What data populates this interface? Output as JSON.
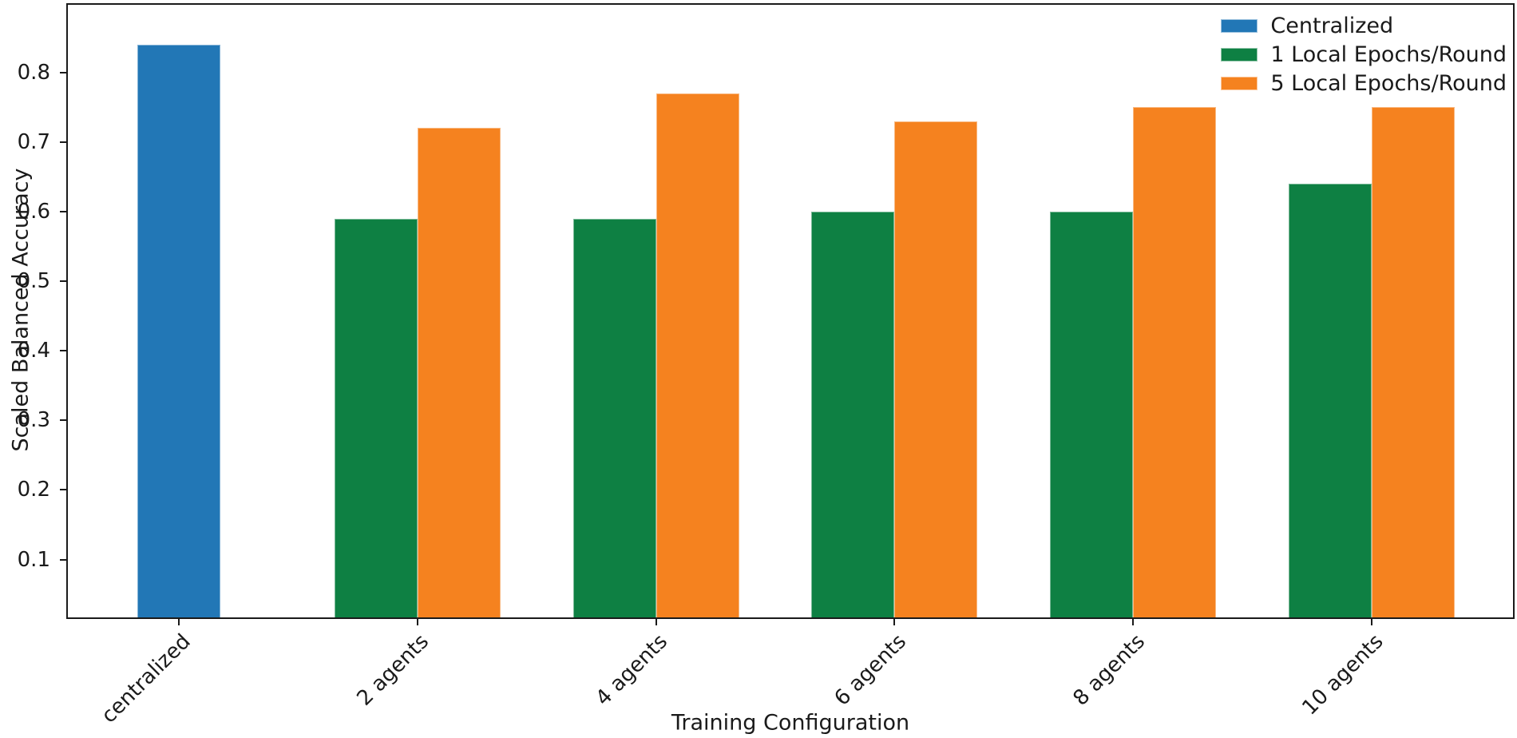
{
  "chart_data": {
    "type": "bar",
    "title": "",
    "xlabel": "Training Configuration",
    "ylabel": "Scaled Balanced Accuracy",
    "categories": [
      "centralized",
      "2 agents",
      "4 agents",
      "6 agents",
      "8 agents",
      "10 agents"
    ],
    "series": [
      {
        "name": "Centralized",
        "color": "#2277b6",
        "values": [
          0.84,
          null,
          null,
          null,
          null,
          null
        ]
      },
      {
        "name": "1 Local Epochs/Round",
        "color": "#0e8043",
        "values": [
          null,
          0.59,
          0.59,
          0.6,
          0.6,
          0.64
        ]
      },
      {
        "name": "5 Local Epochs/Round",
        "color": "#f5821f",
        "values": [
          null,
          0.72,
          0.77,
          0.73,
          0.75,
          0.75
        ]
      }
    ],
    "yticks": [
      0.1,
      0.2,
      0.3,
      0.4,
      0.5,
      0.6,
      0.7,
      0.8
    ],
    "ylim": [
      0.017,
      0.897
    ],
    "xtick_rotation": 45,
    "legend_position": "upper-right",
    "grid": false
  },
  "style": {
    "text_color": "#1a1a1a",
    "spine_color": "#1a1a1a",
    "background": "#ffffff"
  }
}
